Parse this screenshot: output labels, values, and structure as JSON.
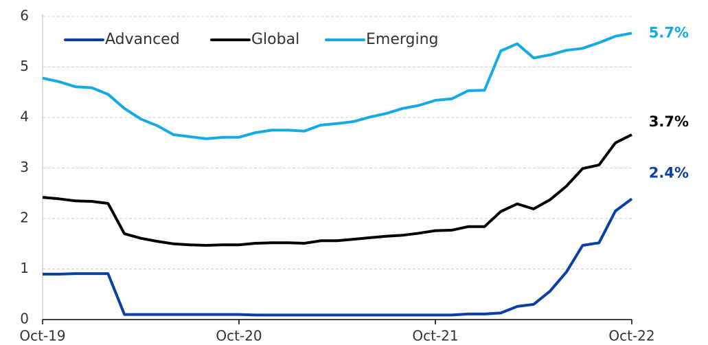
{
  "chart_data": {
    "type": "line",
    "categories": [
      "Oct-19",
      null,
      null,
      null,
      null,
      null,
      null,
      null,
      null,
      null,
      null,
      null,
      "Oct-20",
      null,
      null,
      null,
      null,
      null,
      null,
      null,
      null,
      null,
      null,
      null,
      "Oct-21",
      null,
      null,
      null,
      null,
      null,
      null,
      null,
      null,
      null,
      null,
      null,
      "Oct-22"
    ],
    "series": [
      {
        "name": "Advanced",
        "color": "#0b3fa3",
        "end_label": "2.4%",
        "values": [
          0.9,
          0.9,
          0.91,
          0.91,
          0.91,
          0.1,
          0.1,
          0.1,
          0.1,
          0.1,
          0.1,
          0.1,
          0.1,
          0.09,
          0.09,
          0.09,
          0.09,
          0.09,
          0.09,
          0.09,
          0.09,
          0.09,
          0.09,
          0.09,
          0.09,
          0.09,
          0.11,
          0.11,
          0.13,
          0.26,
          0.3,
          0.56,
          0.94,
          1.47,
          1.52,
          2.15,
          2.39
        ]
      },
      {
        "name": "Global",
        "color": "#000000",
        "end_label": "3.7%",
        "values": [
          2.42,
          2.39,
          2.35,
          2.34,
          2.3,
          1.7,
          1.61,
          1.55,
          1.5,
          1.48,
          1.47,
          1.48,
          1.48,
          1.51,
          1.52,
          1.52,
          1.51,
          1.56,
          1.56,
          1.59,
          1.62,
          1.65,
          1.67,
          1.71,
          1.76,
          1.77,
          1.84,
          1.84,
          2.14,
          2.29,
          2.19,
          2.37,
          2.64,
          2.99,
          3.06,
          3.5,
          3.66
        ]
      },
      {
        "name": "Emerging",
        "color": "#15a9e6",
        "end_label": "5.7%",
        "values": [
          4.78,
          4.71,
          4.61,
          4.59,
          4.46,
          4.18,
          3.97,
          3.84,
          3.66,
          3.62,
          3.58,
          3.61,
          3.61,
          3.7,
          3.75,
          3.75,
          3.73,
          3.85,
          3.88,
          3.92,
          4.01,
          4.08,
          4.18,
          4.24,
          4.34,
          4.37,
          4.53,
          4.54,
          5.32,
          5.46,
          5.18,
          5.24,
          5.33,
          5.37,
          5.48,
          5.61,
          5.67
        ]
      }
    ],
    "ylim": [
      0,
      6
    ],
    "yticks": [
      0,
      1,
      2,
      3,
      4,
      5,
      6
    ],
    "grid": true,
    "legend": "top-left"
  }
}
